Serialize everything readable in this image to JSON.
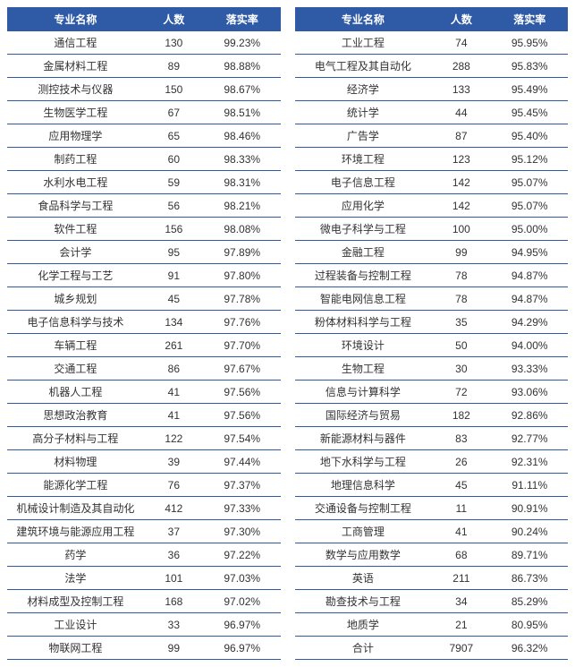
{
  "colors": {
    "header_bg": "#2e5aa6",
    "header_text": "#ffffff",
    "row_border": "#2e5aa6",
    "cell_text": "#333333",
    "background": "#ffffff"
  },
  "headers": {
    "name": "专业名称",
    "count": "人数",
    "rate": "落实率"
  },
  "left": [
    {
      "name": "通信工程",
      "count": "130",
      "rate": "99.23%"
    },
    {
      "name": "金属材料工程",
      "count": "89",
      "rate": "98.88%"
    },
    {
      "name": "测控技术与仪器",
      "count": "150",
      "rate": "98.67%"
    },
    {
      "name": "生物医学工程",
      "count": "67",
      "rate": "98.51%"
    },
    {
      "name": "应用物理学",
      "count": "65",
      "rate": "98.46%"
    },
    {
      "name": "制药工程",
      "count": "60",
      "rate": "98.33%"
    },
    {
      "name": "水利水电工程",
      "count": "59",
      "rate": "98.31%"
    },
    {
      "name": "食品科学与工程",
      "count": "56",
      "rate": "98.21%"
    },
    {
      "name": "软件工程",
      "count": "156",
      "rate": "98.08%"
    },
    {
      "name": "会计学",
      "count": "95",
      "rate": "97.89%"
    },
    {
      "name": "化学工程与工艺",
      "count": "91",
      "rate": "97.80%"
    },
    {
      "name": "城乡规划",
      "count": "45",
      "rate": "97.78%"
    },
    {
      "name": "电子信息科学与技术",
      "count": "134",
      "rate": "97.76%"
    },
    {
      "name": "车辆工程",
      "count": "261",
      "rate": "97.70%"
    },
    {
      "name": "交通工程",
      "count": "86",
      "rate": "97.67%"
    },
    {
      "name": "机器人工程",
      "count": "41",
      "rate": "97.56%"
    },
    {
      "name": "思想政治教育",
      "count": "41",
      "rate": "97.56%"
    },
    {
      "name": "高分子材料与工程",
      "count": "122",
      "rate": "97.54%"
    },
    {
      "name": "材料物理",
      "count": "39",
      "rate": "97.44%"
    },
    {
      "name": "能源化学工程",
      "count": "76",
      "rate": "97.37%"
    },
    {
      "name": "机械设计制造及其自动化",
      "count": "412",
      "rate": "97.33%"
    },
    {
      "name": "建筑环境与能源应用工程",
      "count": "37",
      "rate": "97.30%"
    },
    {
      "name": "药学",
      "count": "36",
      "rate": "97.22%"
    },
    {
      "name": "法学",
      "count": "101",
      "rate": "97.03%"
    },
    {
      "name": "材料成型及控制工程",
      "count": "168",
      "rate": "97.02%"
    },
    {
      "name": "工业设计",
      "count": "33",
      "rate": "96.97%"
    },
    {
      "name": "物联网工程",
      "count": "99",
      "rate": "96.97%"
    }
  ],
  "right": [
    {
      "name": "工业工程",
      "count": "74",
      "rate": "95.95%"
    },
    {
      "name": "电气工程及其自动化",
      "count": "288",
      "rate": "95.83%"
    },
    {
      "name": "经济学",
      "count": "133",
      "rate": "95.49%"
    },
    {
      "name": "统计学",
      "count": "44",
      "rate": "95.45%"
    },
    {
      "name": "广告学",
      "count": "87",
      "rate": "95.40%"
    },
    {
      "name": "环境工程",
      "count": "123",
      "rate": "95.12%"
    },
    {
      "name": "电子信息工程",
      "count": "142",
      "rate": "95.07%"
    },
    {
      "name": "应用化学",
      "count": "142",
      "rate": "95.07%"
    },
    {
      "name": "微电子科学与工程",
      "count": "100",
      "rate": "95.00%"
    },
    {
      "name": "金融工程",
      "count": "99",
      "rate": "94.95%"
    },
    {
      "name": "过程装备与控制工程",
      "count": "78",
      "rate": "94.87%"
    },
    {
      "name": "智能电网信息工程",
      "count": "78",
      "rate": "94.87%"
    },
    {
      "name": "粉体材料科学与工程",
      "count": "35",
      "rate": "94.29%"
    },
    {
      "name": "环境设计",
      "count": "50",
      "rate": "94.00%"
    },
    {
      "name": "生物工程",
      "count": "30",
      "rate": "93.33%"
    },
    {
      "name": "信息与计算科学",
      "count": "72",
      "rate": "93.06%"
    },
    {
      "name": "国际经济与贸易",
      "count": "182",
      "rate": "92.86%"
    },
    {
      "name": "新能源材料与器件",
      "count": "83",
      "rate": "92.77%"
    },
    {
      "name": "地下水科学与工程",
      "count": "26",
      "rate": "92.31%"
    },
    {
      "name": "地理信息科学",
      "count": "45",
      "rate": "91.11%"
    },
    {
      "name": "交通设备与控制工程",
      "count": "11",
      "rate": "90.91%"
    },
    {
      "name": "工商管理",
      "count": "41",
      "rate": "90.24%"
    },
    {
      "name": "数学与应用数学",
      "count": "68",
      "rate": "89.71%"
    },
    {
      "name": "英语",
      "count": "211",
      "rate": "86.73%"
    },
    {
      "name": "勘查技术与工程",
      "count": "34",
      "rate": "85.29%"
    },
    {
      "name": "地质学",
      "count": "21",
      "rate": "80.95%"
    },
    {
      "name": "合计",
      "count": "7907",
      "rate": "96.32%"
    }
  ]
}
